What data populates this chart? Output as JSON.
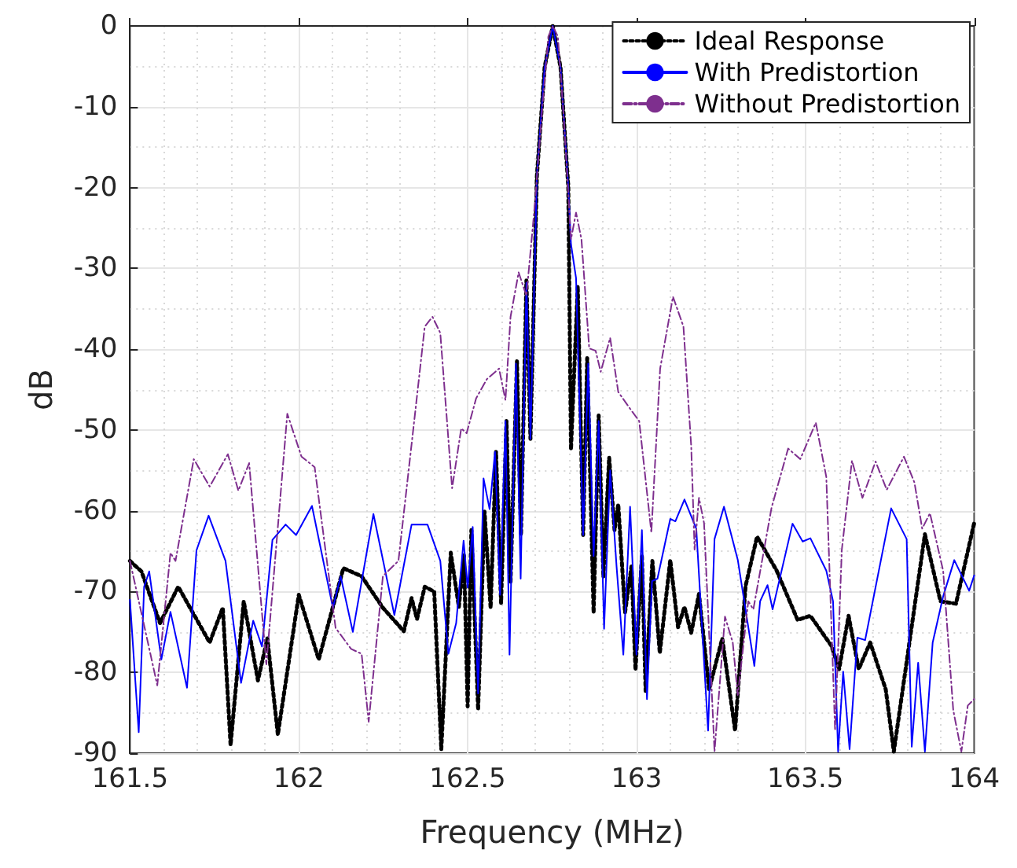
{
  "chart_data": {
    "type": "line",
    "xlabel": "Frequency (MHz)",
    "ylabel": "dB",
    "xlim": [
      161.5,
      164
    ],
    "ylim": [
      -90,
      0
    ],
    "xticks": [
      161.5,
      162,
      162.5,
      163,
      163.5,
      164
    ],
    "yticks": [
      -90,
      -80,
      -70,
      -60,
      -50,
      -40,
      -30,
      -20,
      -10,
      0
    ],
    "grid": true,
    "legend": "top right",
    "marker": "none",
    "series": [
      {
        "name": "Ideal Response",
        "color": "#000000",
        "line_style": "dotted",
        "x": [
          161.5,
          161.534,
          161.589,
          161.643,
          161.736,
          161.775,
          161.798,
          161.837,
          161.879,
          161.907,
          161.938,
          162.0,
          162.059,
          162.132,
          162.186,
          162.249,
          162.311,
          162.334,
          162.35,
          162.373,
          162.401,
          162.422,
          162.45,
          162.474,
          162.489,
          162.5,
          162.511,
          162.531,
          162.55,
          162.568,
          162.584,
          162.599,
          162.615,
          162.627,
          162.646,
          162.658,
          162.674,
          162.686,
          162.705,
          162.728,
          162.752,
          162.775,
          162.798,
          162.806,
          162.826,
          162.842,
          162.854,
          162.873,
          162.888,
          162.902,
          162.919,
          162.935,
          162.946,
          162.966,
          162.985,
          162.997,
          163.016,
          163.027,
          163.047,
          163.069,
          163.1,
          163.123,
          163.142,
          163.162,
          163.185,
          163.215,
          163.254,
          163.292,
          163.323,
          163.357,
          163.415,
          163.477,
          163.515,
          163.577,
          163.6,
          163.628,
          163.658,
          163.692,
          163.738,
          163.762,
          163.854,
          163.9,
          163.946,
          164
        ],
        "values": [
          -66.2,
          -67.5,
          -73.9,
          -69.4,
          -76.3,
          -72,
          -89,
          -71.2,
          -81,
          -75.8,
          -87.7,
          -70.4,
          -78.4,
          -67.1,
          -68.1,
          -72,
          -74.9,
          -70.8,
          -73.4,
          -69.4,
          -70,
          -89.5,
          -65.2,
          -71.9,
          -65.5,
          -84.2,
          -62.4,
          -84.6,
          -60.1,
          -72,
          -52.7,
          -71.4,
          -48.9,
          -68.8,
          -41.5,
          -63,
          -31.5,
          -51.1,
          -18.6,
          -5.1,
          0,
          -5.1,
          -19.9,
          -52.4,
          -32.2,
          -63,
          -41.1,
          -72.6,
          -48.2,
          -68.2,
          -53.4,
          -62.4,
          -59.2,
          -72.6,
          -66.9,
          -79.7,
          -65.6,
          -82.3,
          -66.2,
          -77.6,
          -66.1,
          -74.4,
          -71.9,
          -75.1,
          -70.3,
          -82.1,
          -75.8,
          -87.2,
          -69.3,
          -63.2,
          -67.4,
          -73.5,
          -73,
          -76.7,
          -79.6,
          -73,
          -79.6,
          -76.3,
          -82.1,
          -89.8,
          -62.9,
          -71.2,
          -71.5,
          -61.5
        ]
      },
      {
        "name": "With Predistortion",
        "color": "#0000ff",
        "line_style": "solid",
        "x": [
          161.5,
          161.526,
          161.542,
          161.557,
          161.593,
          161.62,
          161.669,
          161.697,
          161.733,
          161.783,
          161.829,
          161.865,
          161.891,
          161.922,
          161.961,
          161.992,
          162.039,
          162.101,
          162.124,
          162.16,
          162.221,
          162.283,
          162.334,
          162.381,
          162.419,
          162.443,
          162.466,
          162.488,
          162.5,
          162.515,
          162.531,
          162.547,
          162.565,
          162.581,
          162.596,
          162.612,
          162.624,
          162.643,
          162.657,
          162.674,
          162.686,
          162.705,
          162.728,
          162.752,
          162.775,
          162.798,
          162.806,
          162.821,
          162.842,
          162.857,
          162.873,
          162.888,
          162.904,
          162.922,
          162.941,
          162.961,
          162.981,
          163.0,
          163.016,
          163.031,
          163.046,
          163.062,
          163.1,
          163.115,
          163.142,
          163.177,
          163.212,
          163.231,
          163.259,
          163.3,
          163.349,
          163.366,
          163.388,
          163.403,
          163.462,
          163.492,
          163.515,
          163.562,
          163.582,
          163.597,
          163.612,
          163.631,
          163.654,
          163.677,
          163.754,
          163.8,
          163.815,
          163.834,
          163.854,
          163.877,
          163.908,
          163.941,
          163.985,
          164
        ],
        "values": [
          -71,
          -87.4,
          -69.4,
          -67.5,
          -78.4,
          -72.5,
          -81.9,
          -64.9,
          -60.6,
          -66.2,
          -81.3,
          -73.6,
          -76.8,
          -63.6,
          -61.7,
          -63,
          -59.4,
          -72,
          -68.1,
          -75,
          -60.4,
          -72.9,
          -61.7,
          -61.7,
          -66.2,
          -77.7,
          -73.9,
          -63.7,
          -69.5,
          -62,
          -82.6,
          -56,
          -59.8,
          -52.7,
          -70.4,
          -48.9,
          -77.8,
          -41.8,
          -68.4,
          -31.8,
          -51.1,
          -18.6,
          -5.1,
          0,
          -5.1,
          -19.9,
          -27,
          -31.2,
          -63,
          -41.8,
          -65.6,
          -48.9,
          -74.6,
          -55,
          -66.9,
          -77.8,
          -59.5,
          -77.8,
          -62.4,
          -83.3,
          -68.7,
          -68.4,
          -61,
          -61.3,
          -58.6,
          -62.2,
          -87.2,
          -63.5,
          -59.5,
          -66.1,
          -79.2,
          -71.2,
          -69.2,
          -72.2,
          -61.6,
          -63.8,
          -63.4,
          -67.4,
          -71.2,
          -89.8,
          -79.9,
          -89.5,
          -75.7,
          -76,
          -59.7,
          -63.5,
          -89.2,
          -78.8,
          -89.8,
          -76.3,
          -70.6,
          -66.1,
          -69.9,
          -68
        ]
      },
      {
        "name": "Without Predistortion",
        "color": "#7e2f8e",
        "line_style": "dashdot",
        "x": [
          161.5,
          161.581,
          161.62,
          161.635,
          161.689,
          161.736,
          161.79,
          161.821,
          161.853,
          161.904,
          161.966,
          162.008,
          162.047,
          162.109,
          162.155,
          162.186,
          162.207,
          162.249,
          162.295,
          162.342,
          162.373,
          162.396,
          162.419,
          162.454,
          162.481,
          162.497,
          162.525,
          162.557,
          162.593,
          162.612,
          162.627,
          162.651,
          162.674,
          162.697,
          162.721,
          162.739,
          162.752,
          162.767,
          162.783,
          162.806,
          162.821,
          162.837,
          162.86,
          162.879,
          162.894,
          162.922,
          162.946,
          162.985,
          163.008,
          163.044,
          163.07,
          163.108,
          163.139,
          163.162,
          163.172,
          163.185,
          163.2,
          163.231,
          163.262,
          163.285,
          163.3,
          163.331,
          163.346,
          163.4,
          163.449,
          163.485,
          163.531,
          163.562,
          163.588,
          163.608,
          163.638,
          163.669,
          163.708,
          163.741,
          163.792,
          163.823,
          163.846,
          163.869,
          163.908,
          163.938,
          163.962,
          163.981,
          164
        ],
        "values": [
          -66.2,
          -81.6,
          -65.2,
          -66.2,
          -53.6,
          -57,
          -53,
          -57.5,
          -54.1,
          -79,
          -48,
          -53.3,
          -54.6,
          -74.5,
          -77.1,
          -77.7,
          -86.1,
          -68.1,
          -66.2,
          -48.8,
          -37.2,
          -36,
          -38,
          -57.2,
          -49.8,
          -50.4,
          -46.1,
          -43.7,
          -42.4,
          -46.3,
          -36,
          -30.5,
          -33.4,
          -23,
          -10.3,
          -1.3,
          0,
          -1.3,
          -10.3,
          -26.4,
          -23.1,
          -26.4,
          -39.9,
          -40.2,
          -42.8,
          -38.6,
          -45.3,
          -47.6,
          -48.9,
          -62.7,
          -42.4,
          -33.5,
          -37.2,
          -52,
          -64.8,
          -58.4,
          -61.5,
          -89.8,
          -73.1,
          -76.3,
          -82.8,
          -71.2,
          -72.2,
          -59.6,
          -52.3,
          -53.6,
          -49.1,
          -55.8,
          -87.2,
          -64.8,
          -53.8,
          -58.4,
          -53.9,
          -57.4,
          -53.3,
          -56.5,
          -62.2,
          -60.3,
          -67.4,
          -84.7,
          -89.8,
          -84.1,
          -83.3
        ]
      }
    ]
  }
}
